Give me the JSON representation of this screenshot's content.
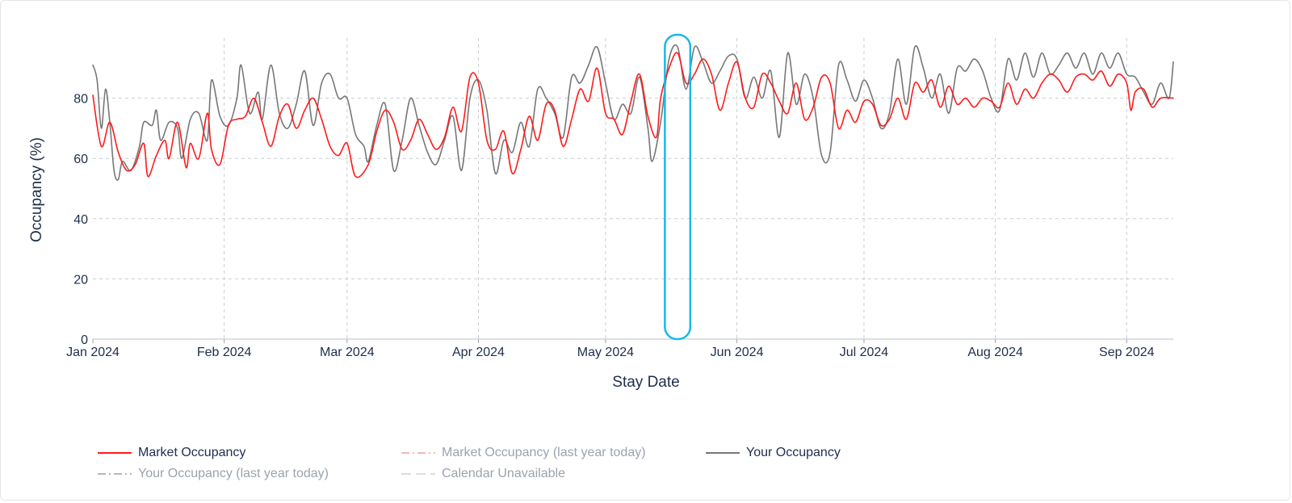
{
  "chart_data": {
    "type": "line",
    "title": "",
    "xlabel": "Stay Date",
    "ylabel": "Occupancy (%)",
    "ylim": [
      0,
      100
    ],
    "yticks": [
      0,
      20,
      40,
      60,
      80
    ],
    "xlim": [
      "2024-01-01",
      "2024-09-12"
    ],
    "xticks": [
      {
        "date": "2024-01-01",
        "label": "Jan 2024"
      },
      {
        "date": "2024-02-01",
        "label": "Feb 2024"
      },
      {
        "date": "2024-03-01",
        "label": "Mar 2024"
      },
      {
        "date": "2024-04-01",
        "label": "Apr 2024"
      },
      {
        "date": "2024-05-01",
        "label": "May 2024"
      },
      {
        "date": "2024-06-01",
        "label": "Jun 2024"
      },
      {
        "date": "2024-07-01",
        "label": "Jul 2024"
      },
      {
        "date": "2024-08-01",
        "label": "Aug 2024"
      },
      {
        "date": "2024-09-01",
        "label": "Sep 2024"
      }
    ],
    "grid": true,
    "legend_position": "bottom",
    "highlight": {
      "x_start": "2024-05-15",
      "x_end": "2024-05-21",
      "color": "#1ab8e8"
    },
    "series": [
      {
        "name": "Market Occupancy",
        "color": "#ff1a1a",
        "dash": "solid",
        "visible": true,
        "points": [
          [
            "2024-01-01",
            81
          ],
          [
            "2024-01-03",
            64
          ],
          [
            "2024-01-05",
            72
          ],
          [
            "2024-01-07",
            62
          ],
          [
            "2024-01-09",
            56
          ],
          [
            "2024-01-11",
            58
          ],
          [
            "2024-01-13",
            65
          ],
          [
            "2024-01-14",
            54
          ],
          [
            "2024-01-16",
            61
          ],
          [
            "2024-01-18",
            66
          ],
          [
            "2024-01-19",
            60
          ],
          [
            "2024-01-21",
            72
          ],
          [
            "2024-01-23",
            57
          ],
          [
            "2024-01-24",
            65
          ],
          [
            "2024-01-26",
            60
          ],
          [
            "2024-01-28",
            75
          ],
          [
            "2024-01-29",
            63
          ],
          [
            "2024-01-31",
            58
          ],
          [
            "2024-02-02",
            71
          ],
          [
            "2024-02-04",
            73
          ],
          [
            "2024-02-06",
            74
          ],
          [
            "2024-02-08",
            80
          ],
          [
            "2024-02-10",
            72
          ],
          [
            "2024-02-12",
            64
          ],
          [
            "2024-02-14",
            74
          ],
          [
            "2024-02-16",
            78
          ],
          [
            "2024-02-18",
            70
          ],
          [
            "2024-02-20",
            76
          ],
          [
            "2024-02-22",
            80
          ],
          [
            "2024-02-24",
            73
          ],
          [
            "2024-02-26",
            64
          ],
          [
            "2024-02-28",
            61
          ],
          [
            "2024-03-01",
            65
          ],
          [
            "2024-03-03",
            54
          ],
          [
            "2024-03-06",
            58
          ],
          [
            "2024-03-08",
            69
          ],
          [
            "2024-03-10",
            76
          ],
          [
            "2024-03-12",
            72
          ],
          [
            "2024-03-14",
            63
          ],
          [
            "2024-03-16",
            66
          ],
          [
            "2024-03-18",
            73
          ],
          [
            "2024-03-20",
            68
          ],
          [
            "2024-03-22",
            63
          ],
          [
            "2024-03-24",
            67
          ],
          [
            "2024-03-26",
            77
          ],
          [
            "2024-03-28",
            69
          ],
          [
            "2024-03-30",
            87
          ],
          [
            "2024-04-01",
            85
          ],
          [
            "2024-04-03",
            66
          ],
          [
            "2024-04-05",
            63
          ],
          [
            "2024-04-07",
            69
          ],
          [
            "2024-04-09",
            55
          ],
          [
            "2024-04-11",
            63
          ],
          [
            "2024-04-13",
            74
          ],
          [
            "2024-04-15",
            66
          ],
          [
            "2024-04-17",
            78
          ],
          [
            "2024-04-19",
            76
          ],
          [
            "2024-04-21",
            64
          ],
          [
            "2024-04-23",
            73
          ],
          [
            "2024-04-25",
            83
          ],
          [
            "2024-04-27",
            79
          ],
          [
            "2024-04-29",
            90
          ],
          [
            "2024-05-01",
            75
          ],
          [
            "2024-05-03",
            73
          ],
          [
            "2024-05-05",
            68
          ],
          [
            "2024-05-07",
            79
          ],
          [
            "2024-05-09",
            88
          ],
          [
            "2024-05-11",
            74
          ],
          [
            "2024-05-13",
            67
          ],
          [
            "2024-05-14",
            80
          ],
          [
            "2024-05-16",
            90
          ],
          [
            "2024-05-18",
            95
          ],
          [
            "2024-05-20",
            85
          ],
          [
            "2024-05-22",
            88
          ],
          [
            "2024-05-24",
            93
          ],
          [
            "2024-05-26",
            88
          ],
          [
            "2024-05-28",
            76
          ],
          [
            "2024-05-30",
            85
          ],
          [
            "2024-06-01",
            92
          ],
          [
            "2024-06-03",
            80
          ],
          [
            "2024-06-05",
            77
          ],
          [
            "2024-06-07",
            88
          ],
          [
            "2024-06-09",
            85
          ],
          [
            "2024-06-11",
            79
          ],
          [
            "2024-06-13",
            75
          ],
          [
            "2024-06-15",
            85
          ],
          [
            "2024-06-17",
            73
          ],
          [
            "2024-06-19",
            77
          ],
          [
            "2024-06-21",
            87
          ],
          [
            "2024-06-23",
            85
          ],
          [
            "2024-06-25",
            70
          ],
          [
            "2024-06-27",
            76
          ],
          [
            "2024-06-29",
            72
          ],
          [
            "2024-07-01",
            79
          ],
          [
            "2024-07-03",
            78
          ],
          [
            "2024-07-05",
            71
          ],
          [
            "2024-07-07",
            73
          ],
          [
            "2024-07-09",
            80
          ],
          [
            "2024-07-11",
            73
          ],
          [
            "2024-07-13",
            85
          ],
          [
            "2024-07-15",
            82
          ],
          [
            "2024-07-17",
            86
          ],
          [
            "2024-07-19",
            77
          ],
          [
            "2024-07-21",
            84
          ],
          [
            "2024-07-23",
            78
          ],
          [
            "2024-07-25",
            80
          ],
          [
            "2024-07-27",
            77
          ],
          [
            "2024-07-29",
            80
          ],
          [
            "2024-07-31",
            79
          ],
          [
            "2024-08-02",
            77
          ],
          [
            "2024-08-04",
            85
          ],
          [
            "2024-08-06",
            78
          ],
          [
            "2024-08-08",
            83
          ],
          [
            "2024-08-10",
            80
          ],
          [
            "2024-08-12",
            85
          ],
          [
            "2024-08-14",
            88
          ],
          [
            "2024-08-16",
            86
          ],
          [
            "2024-08-18",
            82
          ],
          [
            "2024-08-20",
            87
          ],
          [
            "2024-08-22",
            88
          ],
          [
            "2024-08-24",
            86
          ],
          [
            "2024-08-26",
            89
          ],
          [
            "2024-08-28",
            84
          ],
          [
            "2024-08-30",
            88
          ],
          [
            "2024-09-01",
            85
          ],
          [
            "2024-09-02",
            76
          ],
          [
            "2024-09-03",
            82
          ],
          [
            "2024-09-05",
            83
          ],
          [
            "2024-09-07",
            77
          ],
          [
            "2024-09-09",
            80
          ],
          [
            "2024-09-12",
            80
          ]
        ]
      },
      {
        "name": "Market Occupancy (last year today)",
        "color": "#f4a09c",
        "dash": "dashdot",
        "visible": false,
        "points": []
      },
      {
        "name": "Your Occupancy",
        "color": "#777777",
        "dash": "solid",
        "visible": true,
        "points": [
          [
            "2024-01-01",
            91
          ],
          [
            "2024-01-02",
            86
          ],
          [
            "2024-01-03",
            70
          ],
          [
            "2024-01-04",
            83
          ],
          [
            "2024-01-05",
            72
          ],
          [
            "2024-01-06",
            56
          ],
          [
            "2024-01-07",
            53
          ],
          [
            "2024-01-08",
            59
          ],
          [
            "2024-01-10",
            56
          ],
          [
            "2024-01-12",
            64
          ],
          [
            "2024-01-13",
            72
          ],
          [
            "2024-01-15",
            71
          ],
          [
            "2024-01-16",
            76
          ],
          [
            "2024-01-17",
            66
          ],
          [
            "2024-01-19",
            72
          ],
          [
            "2024-01-21",
            70
          ],
          [
            "2024-01-22",
            60
          ],
          [
            "2024-01-24",
            73
          ],
          [
            "2024-01-26",
            75
          ],
          [
            "2024-01-28",
            66
          ],
          [
            "2024-01-29",
            86
          ],
          [
            "2024-01-31",
            74
          ],
          [
            "2024-02-02",
            71
          ],
          [
            "2024-02-04",
            80
          ],
          [
            "2024-02-05",
            91
          ],
          [
            "2024-02-07",
            75
          ],
          [
            "2024-02-09",
            82
          ],
          [
            "2024-02-10",
            73
          ],
          [
            "2024-02-12",
            91
          ],
          [
            "2024-02-14",
            75
          ],
          [
            "2024-02-16",
            70
          ],
          [
            "2024-02-18",
            78
          ],
          [
            "2024-02-20",
            89
          ],
          [
            "2024-02-22",
            71
          ],
          [
            "2024-02-24",
            85
          ],
          [
            "2024-02-26",
            88
          ],
          [
            "2024-02-28",
            80
          ],
          [
            "2024-03-01",
            80
          ],
          [
            "2024-03-03",
            68
          ],
          [
            "2024-03-05",
            64
          ],
          [
            "2024-03-06",
            59
          ],
          [
            "2024-03-08",
            71
          ],
          [
            "2024-03-10",
            78
          ],
          [
            "2024-03-12",
            56
          ],
          [
            "2024-03-14",
            66
          ],
          [
            "2024-03-16",
            80
          ],
          [
            "2024-03-18",
            71
          ],
          [
            "2024-03-20",
            62
          ],
          [
            "2024-03-22",
            58
          ],
          [
            "2024-03-24",
            66
          ],
          [
            "2024-03-26",
            74
          ],
          [
            "2024-03-28",
            56
          ],
          [
            "2024-03-30",
            80
          ],
          [
            "2024-04-01",
            86
          ],
          [
            "2024-04-03",
            76
          ],
          [
            "2024-04-05",
            55
          ],
          [
            "2024-04-07",
            66
          ],
          [
            "2024-04-09",
            62
          ],
          [
            "2024-04-11",
            72
          ],
          [
            "2024-04-13",
            64
          ],
          [
            "2024-04-15",
            83
          ],
          [
            "2024-04-17",
            80
          ],
          [
            "2024-04-19",
            75
          ],
          [
            "2024-04-21",
            67
          ],
          [
            "2024-04-23",
            87
          ],
          [
            "2024-04-25",
            85
          ],
          [
            "2024-04-27",
            91
          ],
          [
            "2024-04-29",
            97
          ],
          [
            "2024-05-01",
            85
          ],
          [
            "2024-05-03",
            73
          ],
          [
            "2024-05-05",
            78
          ],
          [
            "2024-05-07",
            75
          ],
          [
            "2024-05-09",
            87
          ],
          [
            "2024-05-11",
            70
          ],
          [
            "2024-05-12",
            59
          ],
          [
            "2024-05-14",
            72
          ],
          [
            "2024-05-16",
            93
          ],
          [
            "2024-05-18",
            97
          ],
          [
            "2024-05-20",
            83
          ],
          [
            "2024-05-22",
            97
          ],
          [
            "2024-05-24",
            92
          ],
          [
            "2024-05-26",
            85
          ],
          [
            "2024-05-28",
            89
          ],
          [
            "2024-05-30",
            94
          ],
          [
            "2024-06-01",
            93
          ],
          [
            "2024-06-03",
            80
          ],
          [
            "2024-06-05",
            87
          ],
          [
            "2024-06-07",
            80
          ],
          [
            "2024-06-09",
            89
          ],
          [
            "2024-06-11",
            67
          ],
          [
            "2024-06-13",
            95
          ],
          [
            "2024-06-15",
            78
          ],
          [
            "2024-06-17",
            88
          ],
          [
            "2024-06-19",
            80
          ],
          [
            "2024-06-21",
            61
          ],
          [
            "2024-06-23",
            62
          ],
          [
            "2024-06-25",
            91
          ],
          [
            "2024-06-27",
            86
          ],
          [
            "2024-06-29",
            79
          ],
          [
            "2024-07-01",
            86
          ],
          [
            "2024-07-03",
            80
          ],
          [
            "2024-07-05",
            70
          ],
          [
            "2024-07-07",
            75
          ],
          [
            "2024-07-09",
            93
          ],
          [
            "2024-07-11",
            78
          ],
          [
            "2024-07-13",
            97
          ],
          [
            "2024-07-15",
            90
          ],
          [
            "2024-07-17",
            80
          ],
          [
            "2024-07-19",
            88
          ],
          [
            "2024-07-21",
            75
          ],
          [
            "2024-07-23",
            90
          ],
          [
            "2024-07-25",
            89
          ],
          [
            "2024-07-27",
            93
          ],
          [
            "2024-07-29",
            89
          ],
          [
            "2024-07-31",
            80
          ],
          [
            "2024-08-02",
            76
          ],
          [
            "2024-08-04",
            93
          ],
          [
            "2024-08-06",
            86
          ],
          [
            "2024-08-08",
            95
          ],
          [
            "2024-08-10",
            87
          ],
          [
            "2024-08-12",
            95
          ],
          [
            "2024-08-14",
            88
          ],
          [
            "2024-08-16",
            91
          ],
          [
            "2024-08-18",
            95
          ],
          [
            "2024-08-20",
            90
          ],
          [
            "2024-08-22",
            95
          ],
          [
            "2024-08-24",
            88
          ],
          [
            "2024-08-26",
            95
          ],
          [
            "2024-08-28",
            90
          ],
          [
            "2024-08-30",
            95
          ],
          [
            "2024-09-01",
            88
          ],
          [
            "2024-09-03",
            87
          ],
          [
            "2024-09-05",
            82
          ],
          [
            "2024-09-07",
            78
          ],
          [
            "2024-09-09",
            85
          ],
          [
            "2024-09-11",
            80
          ],
          [
            "2024-09-12",
            92
          ]
        ]
      },
      {
        "name": "Your Occupancy (last year today)",
        "color": "#9aa0a6",
        "dash": "dashdot",
        "visible": false,
        "points": []
      },
      {
        "name": "Calendar Unavailable",
        "color": "#cfd3d8",
        "dash": "dash",
        "visible": false,
        "points": []
      }
    ]
  }
}
